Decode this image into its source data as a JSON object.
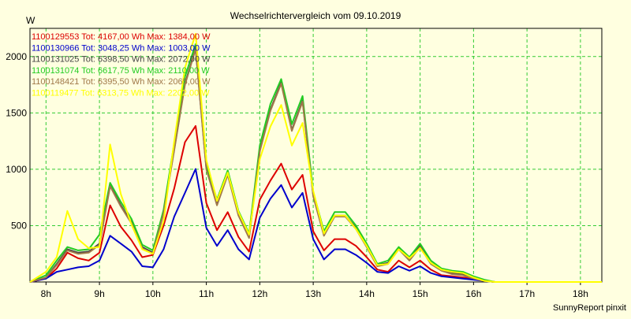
{
  "chart_data": {
    "type": "line",
    "title": "Wechselrichtervergleich vom 09.10.2019",
    "ylabel": "W",
    "xlabel": "",
    "footer": "SunnyReport pinxit",
    "ylim": [
      0,
      2250
    ],
    "xlim": [
      7.7,
      18.4
    ],
    "y_ticks": [
      500,
      1000,
      1500,
      2000
    ],
    "x_ticks": [
      8,
      9,
      10,
      11,
      12,
      13,
      14,
      15,
      16,
      17,
      18
    ],
    "x_tick_labels": [
      "8h",
      "9h",
      "10h",
      "11h",
      "12h",
      "13h",
      "14h",
      "15h",
      "16h",
      "17h",
      "18h"
    ],
    "grid": true,
    "legend_position": "top-left",
    "x": [
      7.7,
      8.0,
      8.2,
      8.4,
      8.6,
      8.8,
      9.0,
      9.2,
      9.4,
      9.6,
      9.8,
      10.0,
      10.2,
      10.4,
      10.6,
      10.8,
      11.0,
      11.2,
      11.4,
      11.6,
      11.8,
      12.0,
      12.2,
      12.4,
      12.6,
      12.8,
      13.0,
      13.2,
      13.4,
      13.6,
      13.8,
      14.0,
      14.2,
      14.4,
      14.6,
      14.8,
      15.0,
      15.2,
      15.4,
      15.6,
      15.8,
      16.0,
      16.2,
      16.4,
      16.6,
      16.8,
      17.0,
      17.2,
      17.4,
      17.6,
      17.8,
      18.0,
      18.2,
      18.4
    ],
    "series": [
      {
        "name": "1100129553 Tot: 4167,00 Wh Max: 1384,00 W",
        "color": "#dd0000",
        "values": [
          0,
          30,
          120,
          260,
          210,
          190,
          260,
          680,
          490,
          370,
          220,
          240,
          500,
          830,
          1240,
          1384,
          700,
          460,
          620,
          400,
          270,
          730,
          900,
          1050,
          820,
          950,
          450,
          280,
          380,
          380,
          320,
          220,
          110,
          90,
          190,
          130,
          190,
          110,
          60,
          50,
          40,
          30,
          10,
          0,
          0,
          0,
          0,
          0,
          0,
          0,
          0,
          0,
          0,
          0
        ]
      },
      {
        "name": "1100130966 Tot: 3048,25 Wh Max: 1003,00 W",
        "color": "#0000cc",
        "values": [
          0,
          30,
          90,
          110,
          130,
          140,
          190,
          410,
          340,
          270,
          140,
          130,
          290,
          580,
          790,
          1003,
          480,
          320,
          460,
          290,
          200,
          570,
          740,
          860,
          660,
          790,
          380,
          200,
          290,
          290,
          240,
          170,
          90,
          80,
          140,
          100,
          140,
          80,
          50,
          40,
          30,
          20,
          10,
          0,
          0,
          0,
          0,
          0,
          0,
          0,
          0,
          0,
          0,
          0
        ]
      },
      {
        "name": "1100131025 Tot: 6398,50 Wh Max: 2072,00 W",
        "color": "#444444",
        "values": [
          0,
          40,
          160,
          290,
          260,
          270,
          340,
          860,
          680,
          530,
          310,
          260,
          620,
          1180,
          1760,
          2072,
          1010,
          690,
          960,
          600,
          400,
          1170,
          1530,
          1770,
          1350,
          1610,
          770,
          420,
          590,
          590,
          480,
          320,
          150,
          170,
          300,
          200,
          320,
          170,
          110,
          80,
          70,
          40,
          10,
          0,
          0,
          0,
          0,
          0,
          0,
          0,
          0,
          0,
          0,
          0
        ]
      },
      {
        "name": "1100131074 Tot: 6617,75 Wh Max: 2110,00 W",
        "color": "#22cc22",
        "values": [
          0,
          60,
          190,
          310,
          280,
          290,
          420,
          880,
          710,
          560,
          330,
          280,
          640,
          1230,
          1820,
          2110,
          1040,
          730,
          990,
          630,
          430,
          1210,
          1580,
          1800,
          1400,
          1650,
          800,
          450,
          620,
          620,
          500,
          340,
          160,
          190,
          310,
          220,
          340,
          190,
          120,
          100,
          90,
          50,
          20,
          0,
          0,
          0,
          0,
          0,
          0,
          0,
          0,
          0,
          0,
          0
        ]
      },
      {
        "name": "1100148421 Tot: 6395,50 Wh Max: 2065,00 W",
        "color": "#a0784a",
        "values": [
          0,
          40,
          150,
          280,
          250,
          260,
          330,
          850,
          670,
          520,
          300,
          250,
          610,
          1170,
          1750,
          2065,
          1000,
          680,
          950,
          590,
          390,
          1160,
          1520,
          1760,
          1340,
          1600,
          760,
          410,
          580,
          580,
          470,
          310,
          140,
          160,
          290,
          190,
          310,
          160,
          100,
          70,
          60,
          30,
          10,
          0,
          0,
          0,
          0,
          0,
          0,
          0,
          0,
          0,
          0,
          0
        ]
      },
      {
        "name": "1100119477 Tot: 6313,75 Wh Max: 2202,00 W",
        "color": "#ffff00",
        "values": [
          0,
          90,
          220,
          630,
          380,
          300,
          310,
          1220,
          780,
          510,
          290,
          250,
          540,
          1250,
          1900,
          2202,
          1080,
          720,
          970,
          620,
          420,
          1090,
          1380,
          1570,
          1210,
          1410,
          810,
          430,
          590,
          590,
          470,
          320,
          150,
          160,
          290,
          210,
          300,
          170,
          110,
          90,
          80,
          40,
          10,
          0,
          0,
          0,
          0,
          0,
          0,
          0,
          0,
          0,
          0,
          0
        ]
      }
    ]
  }
}
